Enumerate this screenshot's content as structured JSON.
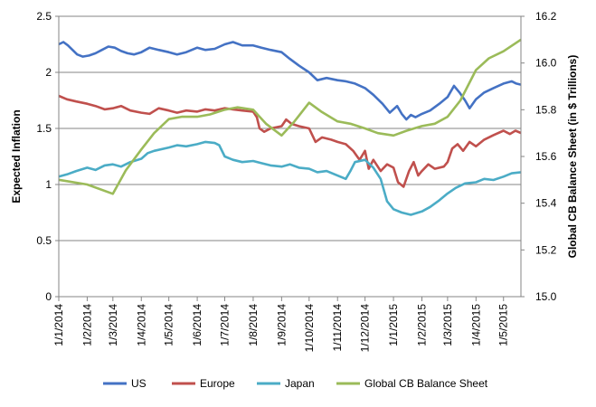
{
  "chart_data": {
    "type": "line",
    "title": "",
    "y_left": {
      "label": "Expected Inflation",
      "min": 0,
      "max": 2.5,
      "ticks": [
        0,
        0.5,
        1,
        1.5,
        2,
        2.5
      ],
      "tick_labels": [
        "0",
        "0.5",
        "1",
        "1.5",
        "2",
        "2.5"
      ]
    },
    "y_right": {
      "label": "Global CB Balance Sheet (in $ Trillions)",
      "min": 15.0,
      "max": 16.2,
      "ticks": [
        15.0,
        15.2,
        15.4,
        15.6,
        15.8,
        16.0,
        16.2
      ],
      "tick_labels": [
        "15.0",
        "15.2",
        "15.4",
        "15.6",
        "15.8",
        "16.0",
        "16.2"
      ]
    },
    "x_axis": {
      "unit": "date",
      "start": "2014-01-01",
      "end": "2015-05-20",
      "tick_labels": [
        "1/1/2014",
        "1/2/2014",
        "1/3/2014",
        "1/4/2014",
        "1/5/2014",
        "1/6/2014",
        "1/7/2014",
        "1/8/2014",
        "1/9/2014",
        "1/10/2014",
        "1/11/2014",
        "1/12/2014",
        "1/1/2015",
        "1/2/2015",
        "1/3/2015",
        "1/4/2015",
        "1/5/2015"
      ],
      "tick_dates": [
        "2014-01-01",
        "2014-02-01",
        "2014-03-01",
        "2014-04-01",
        "2014-05-01",
        "2014-06-01",
        "2014-07-01",
        "2014-08-01",
        "2014-09-01",
        "2014-10-01",
        "2014-11-01",
        "2014-12-01",
        "2015-01-01",
        "2015-02-01",
        "2015-03-01",
        "2015-04-01",
        "2015-05-01"
      ]
    },
    "grid": {
      "horizontal": true,
      "vertical": false
    },
    "legend": {
      "position": "bottom"
    },
    "series": [
      {
        "name": "US",
        "axis": "left",
        "color": "#4472C4",
        "points": [
          [
            "2014-01-01",
            2.25
          ],
          [
            "2014-01-06",
            2.27
          ],
          [
            "2014-01-11",
            2.24
          ],
          [
            "2014-01-16",
            2.2
          ],
          [
            "2014-01-21",
            2.16
          ],
          [
            "2014-01-27",
            2.14
          ],
          [
            "2014-02-03",
            2.15
          ],
          [
            "2014-02-10",
            2.17
          ],
          [
            "2014-02-17",
            2.2
          ],
          [
            "2014-02-24",
            2.23
          ],
          [
            "2014-03-03",
            2.22
          ],
          [
            "2014-03-10",
            2.19
          ],
          [
            "2014-03-17",
            2.17
          ],
          [
            "2014-03-24",
            2.16
          ],
          [
            "2014-04-01",
            2.18
          ],
          [
            "2014-04-10",
            2.22
          ],
          [
            "2014-04-20",
            2.2
          ],
          [
            "2014-05-01",
            2.18
          ],
          [
            "2014-05-10",
            2.16
          ],
          [
            "2014-05-20",
            2.18
          ],
          [
            "2014-06-01",
            2.22
          ],
          [
            "2014-06-10",
            2.2
          ],
          [
            "2014-06-20",
            2.21
          ],
          [
            "2014-07-01",
            2.25
          ],
          [
            "2014-07-10",
            2.27
          ],
          [
            "2014-07-20",
            2.24
          ],
          [
            "2014-08-01",
            2.24
          ],
          [
            "2014-08-10",
            2.22
          ],
          [
            "2014-08-20",
            2.2
          ],
          [
            "2014-09-01",
            2.18
          ],
          [
            "2014-09-10",
            2.12
          ],
          [
            "2014-09-20",
            2.06
          ],
          [
            "2014-10-01",
            2.0
          ],
          [
            "2014-10-10",
            1.93
          ],
          [
            "2014-10-20",
            1.95
          ],
          [
            "2014-11-01",
            1.93
          ],
          [
            "2014-11-10",
            1.92
          ],
          [
            "2014-11-20",
            1.9
          ],
          [
            "2014-12-01",
            1.86
          ],
          [
            "2014-12-10",
            1.8
          ],
          [
            "2014-12-20",
            1.72
          ],
          [
            "2014-12-28",
            1.64
          ],
          [
            "2015-01-05",
            1.7
          ],
          [
            "2015-01-10",
            1.63
          ],
          [
            "2015-01-15",
            1.58
          ],
          [
            "2015-01-20",
            1.62
          ],
          [
            "2015-01-25",
            1.6
          ],
          [
            "2015-02-01",
            1.63
          ],
          [
            "2015-02-10",
            1.66
          ],
          [
            "2015-02-20",
            1.72
          ],
          [
            "2015-03-01",
            1.78
          ],
          [
            "2015-03-08",
            1.88
          ],
          [
            "2015-03-14",
            1.82
          ],
          [
            "2015-03-20",
            1.75
          ],
          [
            "2015-03-25",
            1.68
          ],
          [
            "2015-04-01",
            1.76
          ],
          [
            "2015-04-10",
            1.82
          ],
          [
            "2015-04-20",
            1.86
          ],
          [
            "2015-05-01",
            1.9
          ],
          [
            "2015-05-10",
            1.92
          ],
          [
            "2015-05-15",
            1.9
          ],
          [
            "2015-05-20",
            1.89
          ]
        ]
      },
      {
        "name": "Europe",
        "axis": "left",
        "color": "#C0504D",
        "points": [
          [
            "2014-01-01",
            1.79
          ],
          [
            "2014-01-10",
            1.76
          ],
          [
            "2014-01-20",
            1.74
          ],
          [
            "2014-02-01",
            1.72
          ],
          [
            "2014-02-10",
            1.7
          ],
          [
            "2014-02-20",
            1.67
          ],
          [
            "2014-03-01",
            1.68
          ],
          [
            "2014-03-10",
            1.7
          ],
          [
            "2014-03-20",
            1.66
          ],
          [
            "2014-04-01",
            1.64
          ],
          [
            "2014-04-10",
            1.63
          ],
          [
            "2014-04-20",
            1.68
          ],
          [
            "2014-05-01",
            1.66
          ],
          [
            "2014-05-10",
            1.64
          ],
          [
            "2014-05-20",
            1.66
          ],
          [
            "2014-06-01",
            1.65
          ],
          [
            "2014-06-10",
            1.67
          ],
          [
            "2014-06-20",
            1.66
          ],
          [
            "2014-07-01",
            1.68
          ],
          [
            "2014-07-10",
            1.67
          ],
          [
            "2014-07-20",
            1.66
          ],
          [
            "2014-08-01",
            1.65
          ],
          [
            "2014-08-05",
            1.6
          ],
          [
            "2014-08-08",
            1.5
          ],
          [
            "2014-08-13",
            1.47
          ],
          [
            "2014-08-20",
            1.5
          ],
          [
            "2014-09-01",
            1.52
          ],
          [
            "2014-09-06",
            1.58
          ],
          [
            "2014-09-12",
            1.54
          ],
          [
            "2014-09-20",
            1.52
          ],
          [
            "2014-10-01",
            1.5
          ],
          [
            "2014-10-08",
            1.38
          ],
          [
            "2014-10-15",
            1.42
          ],
          [
            "2014-10-25",
            1.4
          ],
          [
            "2014-11-01",
            1.38
          ],
          [
            "2014-11-10",
            1.36
          ],
          [
            "2014-11-18",
            1.3
          ],
          [
            "2014-11-25",
            1.22
          ],
          [
            "2014-12-01",
            1.3
          ],
          [
            "2014-12-05",
            1.14
          ],
          [
            "2014-12-10",
            1.22
          ],
          [
            "2014-12-18",
            1.12
          ],
          [
            "2014-12-25",
            1.18
          ],
          [
            "2015-01-01",
            1.15
          ],
          [
            "2015-01-06",
            1.02
          ],
          [
            "2015-01-12",
            0.98
          ],
          [
            "2015-01-18",
            1.12
          ],
          [
            "2015-01-23",
            1.2
          ],
          [
            "2015-01-28",
            1.08
          ],
          [
            "2015-02-01",
            1.12
          ],
          [
            "2015-02-08",
            1.18
          ],
          [
            "2015-02-15",
            1.14
          ],
          [
            "2015-02-25",
            1.16
          ],
          [
            "2015-03-01",
            1.2
          ],
          [
            "2015-03-06",
            1.32
          ],
          [
            "2015-03-12",
            1.36
          ],
          [
            "2015-03-18",
            1.3
          ],
          [
            "2015-03-25",
            1.38
          ],
          [
            "2015-04-01",
            1.34
          ],
          [
            "2015-04-10",
            1.4
          ],
          [
            "2015-04-20",
            1.44
          ],
          [
            "2015-05-01",
            1.48
          ],
          [
            "2015-05-08",
            1.45
          ],
          [
            "2015-05-14",
            1.48
          ],
          [
            "2015-05-20",
            1.46
          ]
        ]
      },
      {
        "name": "Japan",
        "axis": "left",
        "color": "#4BACC6",
        "points": [
          [
            "2014-01-01",
            1.07
          ],
          [
            "2014-01-10",
            1.09
          ],
          [
            "2014-01-20",
            1.12
          ],
          [
            "2014-02-01",
            1.15
          ],
          [
            "2014-02-10",
            1.13
          ],
          [
            "2014-02-20",
            1.17
          ],
          [
            "2014-03-01",
            1.18
          ],
          [
            "2014-03-10",
            1.16
          ],
          [
            "2014-03-20",
            1.2
          ],
          [
            "2014-04-01",
            1.23
          ],
          [
            "2014-04-08",
            1.28
          ],
          [
            "2014-04-15",
            1.3
          ],
          [
            "2014-05-01",
            1.33
          ],
          [
            "2014-05-10",
            1.35
          ],
          [
            "2014-05-20",
            1.34
          ],
          [
            "2014-06-01",
            1.36
          ],
          [
            "2014-06-10",
            1.38
          ],
          [
            "2014-06-20",
            1.37
          ],
          [
            "2014-06-25",
            1.35
          ],
          [
            "2014-07-01",
            1.25
          ],
          [
            "2014-07-10",
            1.22
          ],
          [
            "2014-07-20",
            1.2
          ],
          [
            "2014-08-01",
            1.21
          ],
          [
            "2014-08-10",
            1.19
          ],
          [
            "2014-08-20",
            1.17
          ],
          [
            "2014-09-01",
            1.16
          ],
          [
            "2014-09-10",
            1.18
          ],
          [
            "2014-09-20",
            1.15
          ],
          [
            "2014-10-01",
            1.14
          ],
          [
            "2014-10-10",
            1.11
          ],
          [
            "2014-10-20",
            1.12
          ],
          [
            "2014-11-01",
            1.08
          ],
          [
            "2014-11-10",
            1.05
          ],
          [
            "2014-11-15",
            1.12
          ],
          [
            "2014-11-20",
            1.2
          ],
          [
            "2014-12-01",
            1.22
          ],
          [
            "2014-12-10",
            1.15
          ],
          [
            "2014-12-18",
            1.05
          ],
          [
            "2014-12-25",
            0.85
          ],
          [
            "2015-01-01",
            0.78
          ],
          [
            "2015-01-10",
            0.75
          ],
          [
            "2015-01-20",
            0.73
          ],
          [
            "2015-02-01",
            0.76
          ],
          [
            "2015-02-10",
            0.8
          ],
          [
            "2015-02-20",
            0.86
          ],
          [
            "2015-03-01",
            0.92
          ],
          [
            "2015-03-10",
            0.97
          ],
          [
            "2015-03-20",
            1.01
          ],
          [
            "2015-04-01",
            1.02
          ],
          [
            "2015-04-10",
            1.05
          ],
          [
            "2015-04-20",
            1.04
          ],
          [
            "2015-05-01",
            1.07
          ],
          [
            "2015-05-10",
            1.1
          ],
          [
            "2015-05-20",
            1.11
          ]
        ]
      },
      {
        "name": "Global CB Balance Sheet",
        "axis": "right",
        "color": "#9BBB59",
        "points": [
          [
            "2014-01-01",
            15.5
          ],
          [
            "2014-02-01",
            15.48
          ],
          [
            "2014-03-01",
            15.44
          ],
          [
            "2014-03-15",
            15.54
          ],
          [
            "2014-04-01",
            15.63
          ],
          [
            "2014-04-15",
            15.7
          ],
          [
            "2014-05-01",
            15.76
          ],
          [
            "2014-05-15",
            15.77
          ],
          [
            "2014-06-01",
            15.77
          ],
          [
            "2014-06-15",
            15.78
          ],
          [
            "2014-07-01",
            15.8
          ],
          [
            "2014-07-15",
            15.81
          ],
          [
            "2014-08-01",
            15.8
          ],
          [
            "2014-08-15",
            15.74
          ],
          [
            "2014-09-01",
            15.69
          ],
          [
            "2014-09-15",
            15.75
          ],
          [
            "2014-10-01",
            15.83
          ],
          [
            "2014-10-15",
            15.79
          ],
          [
            "2014-11-01",
            15.75
          ],
          [
            "2014-11-15",
            15.74
          ],
          [
            "2014-12-01",
            15.72
          ],
          [
            "2014-12-15",
            15.7
          ],
          [
            "2015-01-01",
            15.69
          ],
          [
            "2015-01-15",
            15.71
          ],
          [
            "2015-02-01",
            15.73
          ],
          [
            "2015-02-15",
            15.74
          ],
          [
            "2015-03-01",
            15.77
          ],
          [
            "2015-03-15",
            15.84
          ],
          [
            "2015-04-01",
            15.97
          ],
          [
            "2015-04-15",
            16.02
          ],
          [
            "2015-05-01",
            16.05
          ],
          [
            "2015-05-20",
            16.1
          ]
        ]
      }
    ]
  }
}
